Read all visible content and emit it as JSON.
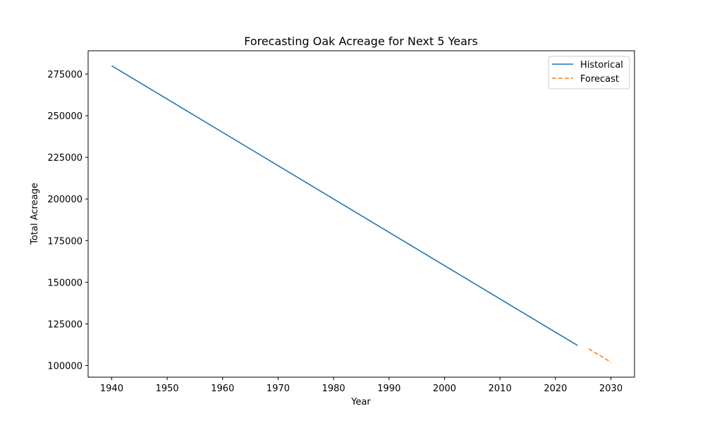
{
  "chart_data": {
    "type": "line",
    "title": "Forecasting Oak Acreage for Next 5 Years",
    "xlabel": "Year",
    "ylabel": "Total Acreage",
    "xlim": [
      1935.75,
      2034.25
    ],
    "ylim": [
      93000,
      289000
    ],
    "xticks": [
      1940,
      1950,
      1960,
      1970,
      1980,
      1990,
      2000,
      2010,
      2020,
      2030
    ],
    "yticks": [
      100000,
      125000,
      150000,
      175000,
      200000,
      225000,
      250000,
      275000
    ],
    "grid": false,
    "legend_position": "top-right",
    "series": [
      {
        "name": "Historical",
        "style": "solid",
        "color": "#1f77b4",
        "x": [
          1940,
          2024
        ],
        "y": [
          280000,
          112000
        ]
      },
      {
        "name": "Forecast",
        "style": "dashed",
        "color": "#ff7f0e",
        "x": [
          2026,
          2030
        ],
        "y": [
          110000,
          102000
        ]
      }
    ]
  }
}
